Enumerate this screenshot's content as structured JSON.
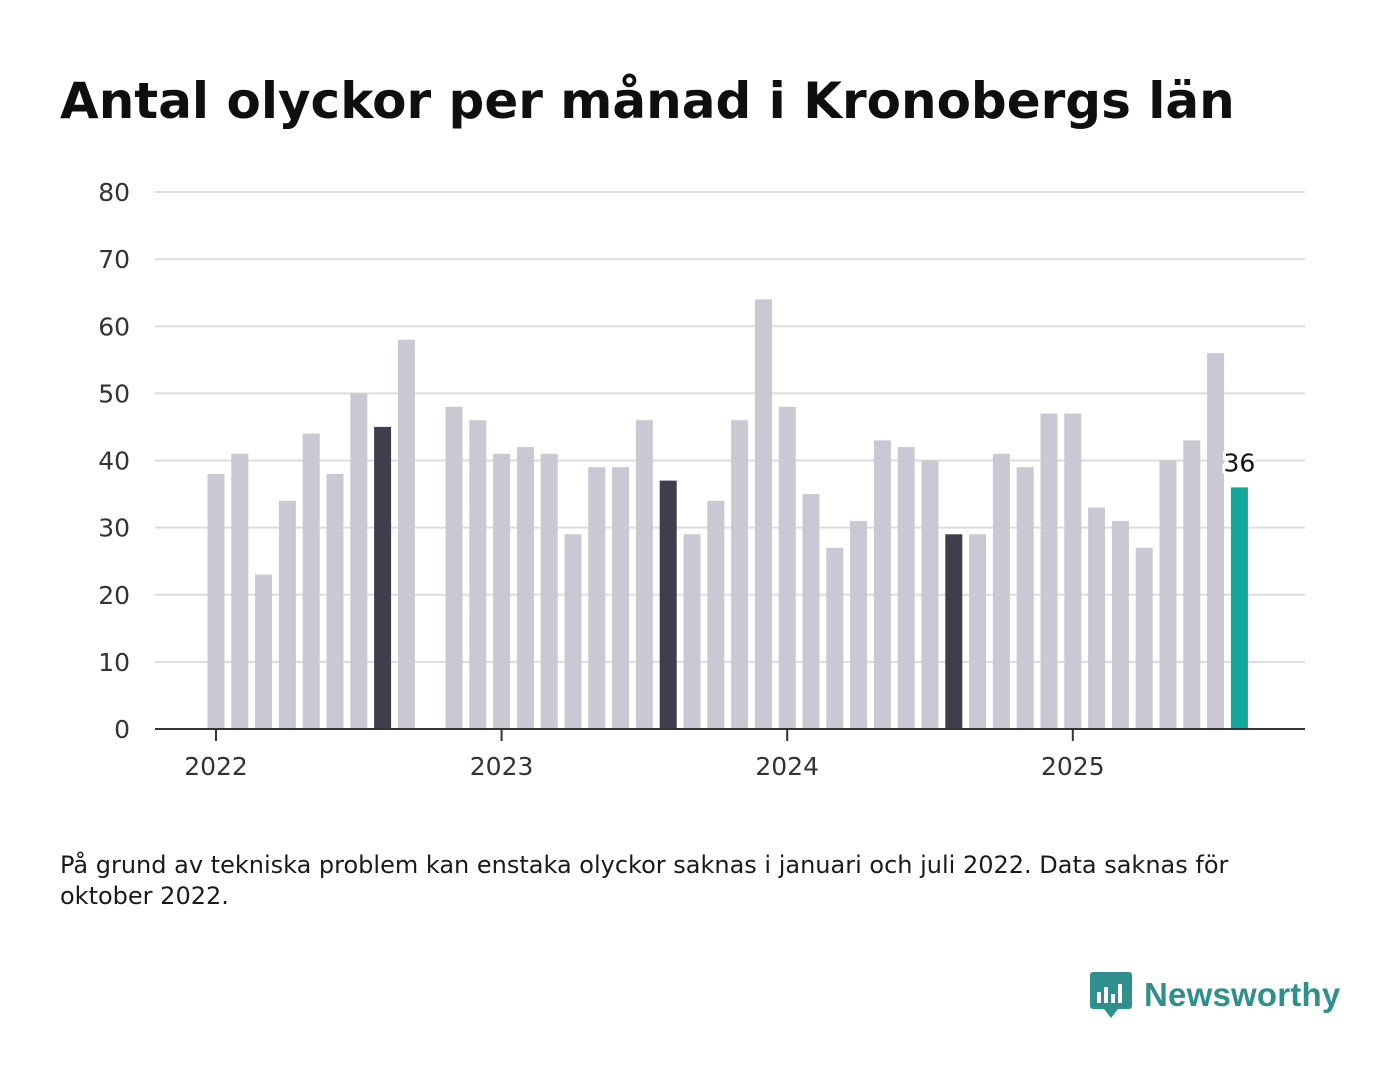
{
  "title": "Antal olyckor per månad i Kronobergs län",
  "footnote": "På grund av tekniska problem kan enstaka olyckor saknas i januari och juli 2022. Data saknas för oktober 2022.",
  "brand": {
    "name": "Newsworthy",
    "icon": "newsworthy-logo-icon",
    "color": "#2f8f8c"
  },
  "colors": {
    "default_bar": "#c9c8d3",
    "highlight_bar": "#3f3e4d",
    "latest_bar": "#12a89a",
    "grid": "#dddddd",
    "axis": "#333333"
  },
  "chart_data": {
    "type": "bar",
    "x_tick_labels": [
      "2022",
      "2023",
      "2024",
      "2025"
    ],
    "y_tick_labels": [
      "0",
      "10",
      "20",
      "30",
      "40",
      "50",
      "60",
      "70",
      "80"
    ],
    "ylim": [
      0,
      80
    ],
    "grid": true,
    "categories": [
      "2022-01",
      "2022-02",
      "2022-03",
      "2022-04",
      "2022-05",
      "2022-06",
      "2022-07",
      "2022-08",
      "2022-09",
      "2022-10",
      "2022-11",
      "2022-12",
      "2023-01",
      "2023-02",
      "2023-03",
      "2023-04",
      "2023-05",
      "2023-06",
      "2023-07",
      "2023-08",
      "2023-09",
      "2023-10",
      "2023-11",
      "2023-12",
      "2024-01",
      "2024-02",
      "2024-03",
      "2024-04",
      "2024-05",
      "2024-06",
      "2024-07",
      "2024-08",
      "2024-09",
      "2024-10",
      "2024-11",
      "2024-12",
      "2025-01",
      "2025-02",
      "2025-03",
      "2025-04",
      "2025-05",
      "2025-06",
      "2025-07",
      "2025-08"
    ],
    "values": [
      38,
      41,
      23,
      34,
      44,
      38,
      50,
      45,
      58,
      null,
      48,
      46,
      41,
      42,
      41,
      29,
      39,
      39,
      46,
      37,
      29,
      34,
      46,
      64,
      48,
      35,
      27,
      31,
      43,
      42,
      40,
      29,
      29,
      41,
      39,
      47,
      47,
      33,
      31,
      27,
      40,
      43,
      56,
      36
    ],
    "highlighted": [
      "2022-08",
      "2023-08",
      "2024-08"
    ],
    "latest": "2025-08",
    "value_labels": [
      {
        "category": "2025-08",
        "text": "36"
      }
    ]
  }
}
